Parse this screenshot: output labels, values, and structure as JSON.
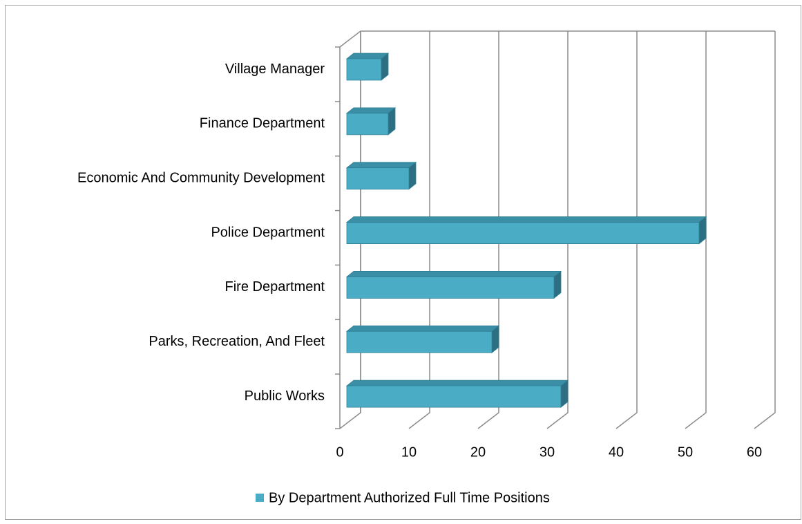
{
  "chart_data": {
    "type": "bar",
    "orientation": "horizontal",
    "categories": [
      "Village Manager",
      "Finance Department",
      "Economic And Community Development",
      "Police Department",
      "Fire Department",
      "Parks, Recreation, And Fleet",
      "Public Works"
    ],
    "series": [
      {
        "name": "By Department Authorized Full Time Positions",
        "color": "#4bacc6",
        "values": [
          5,
          6,
          9,
          51,
          30,
          21,
          31
        ]
      }
    ],
    "xlim": [
      0,
      60
    ],
    "xticks": [
      0,
      10,
      20,
      30,
      40,
      50,
      60
    ],
    "grid": true,
    "legend": "bottom"
  }
}
